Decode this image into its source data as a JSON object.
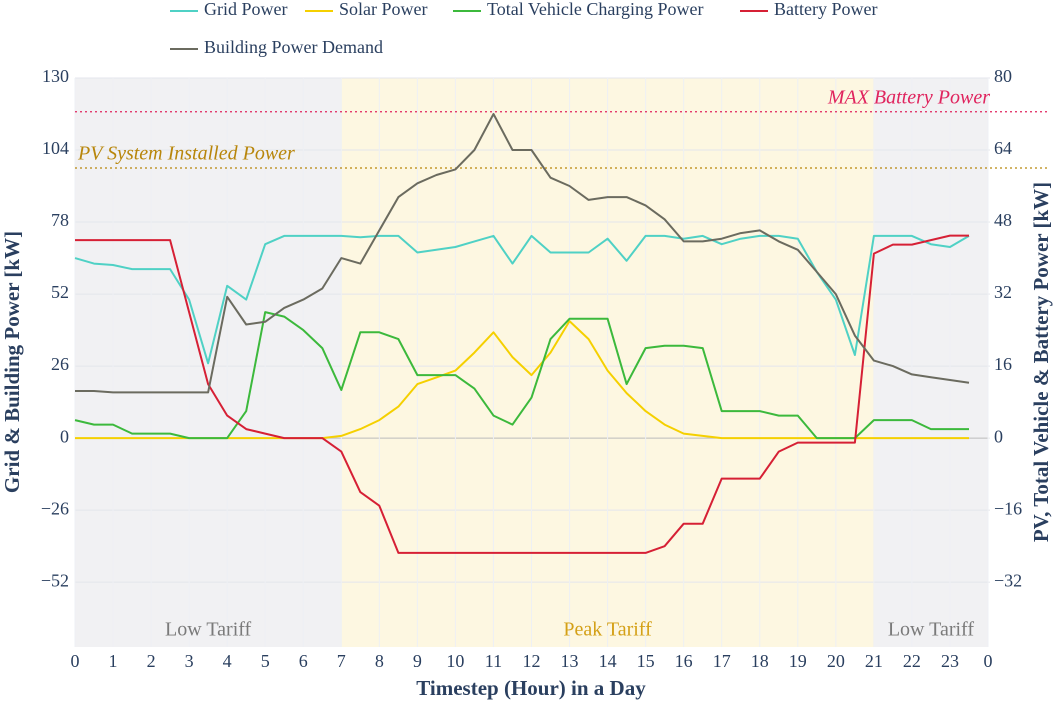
{
  "chart_data": {
    "type": "line",
    "xlabel": "Timestep (Hour) in a Day",
    "ylabel": "Grid & Building Power [kW]",
    "y2label": "PV, Total Vehicle & Battery Power [kW]",
    "xlim": [
      0,
      24
    ],
    "xticks": [
      0,
      1,
      2,
      3,
      4,
      5,
      6,
      7,
      8,
      9,
      10,
      11,
      12,
      13,
      14,
      15,
      16,
      17,
      18,
      19,
      20,
      21,
      22,
      23,
      {
        "value": 24,
        "label": "0"
      }
    ],
    "ylim": [
      -75.4,
      130
    ],
    "yticks": [
      130,
      104,
      78,
      52,
      26,
      0,
      {
        "value": -26,
        "label": "−26"
      },
      {
        "value": -52,
        "label": "−52"
      }
    ],
    "y2lim": [
      -46.4,
      80
    ],
    "y2ticks": [
      80,
      64,
      48,
      32,
      16,
      0,
      {
        "value": -16,
        "label": "−16"
      },
      {
        "value": -32,
        "label": "−32"
      }
    ],
    "grid": true,
    "x": [
      0,
      0.5,
      1,
      1.5,
      2,
      2.5,
      3,
      3.5,
      4,
      4.5,
      5,
      5.5,
      6,
      6.5,
      7,
      7.5,
      8,
      8.5,
      9,
      9.5,
      10,
      10.5,
      11,
      11.5,
      12,
      12.5,
      13,
      13.5,
      14,
      14.5,
      15,
      15.5,
      16,
      16.5,
      17,
      17.5,
      18,
      18.5,
      19,
      19.5,
      20,
      20.5,
      21,
      21.5,
      22,
      22.5,
      23,
      23.5
    ],
    "series": [
      {
        "name": "Grid Power",
        "color": "#4fd1c5",
        "axis": "y",
        "values": [
          65,
          63,
          62.5,
          61,
          61,
          61,
          50,
          27,
          55,
          50,
          70,
          73,
          73,
          73,
          73,
          72.5,
          73,
          73,
          67,
          68,
          69,
          71,
          73,
          63,
          73,
          67,
          67,
          67,
          72,
          64,
          73,
          73,
          72,
          73,
          70,
          72,
          73,
          73,
          72,
          60,
          50,
          30,
          73,
          73,
          73,
          70,
          69,
          73
        ]
      },
      {
        "name": "Solar Power",
        "color": "#f5d000",
        "axis": "y2",
        "values": [
          0,
          0,
          0,
          0,
          0,
          0,
          0,
          0,
          0,
          0,
          0,
          0,
          0,
          0,
          0.5,
          2,
          4,
          7,
          12,
          13.5,
          15,
          19,
          23.5,
          18,
          14,
          19,
          26,
          22,
          15,
          10,
          6,
          3,
          1,
          0.5,
          0,
          0,
          0,
          0,
          0,
          0,
          0,
          0,
          0,
          0,
          0,
          0,
          0,
          0
        ]
      },
      {
        "name": "Total Vehicle Charging Power",
        "color": "#3cb93c",
        "axis": "y2",
        "values": [
          4,
          3,
          3,
          1,
          1,
          1,
          0,
          0,
          0,
          6,
          28,
          27,
          24,
          20,
          10.7,
          23.5,
          23.5,
          22,
          14,
          14,
          14,
          11,
          5,
          3,
          9,
          22,
          26.5,
          26.5,
          26.5,
          12,
          20,
          20.5,
          20.5,
          20,
          6,
          6,
          6,
          5,
          5,
          0,
          0,
          0,
          4,
          4,
          4,
          2,
          2,
          2
        ]
      },
      {
        "name": "Battery Power",
        "color": "#d62035",
        "axis": "y2",
        "values": [
          44,
          44,
          44,
          44,
          44,
          44,
          28,
          12,
          5,
          2,
          1,
          0,
          0,
          0,
          -3,
          -12,
          -15,
          -25.5,
          -25.5,
          -25.5,
          -25.5,
          -25.5,
          -25.5,
          -25.5,
          -25.5,
          -25.5,
          -25.5,
          -25.5,
          -25.5,
          -25.5,
          -25.5,
          -24,
          -19,
          -19,
          -9,
          -9,
          -9,
          -3,
          -1,
          -1,
          -1,
          -1,
          41,
          43,
          43,
          44,
          45,
          45
        ]
      },
      {
        "name": "Building Power Demand",
        "color": "#6b6b5f",
        "axis": "y",
        "values": [
          17,
          17,
          16.5,
          16.5,
          16.5,
          16.5,
          16.5,
          16.5,
          51,
          41,
          42,
          47,
          50,
          54,
          65,
          63,
          75,
          87,
          92,
          95,
          97,
          104,
          117,
          104,
          104,
          94,
          91,
          86,
          87,
          87,
          84,
          79,
          71,
          71,
          72,
          74,
          75,
          71,
          68,
          60,
          52,
          37,
          28,
          26,
          23,
          22,
          21,
          20
        ]
      }
    ],
    "regions": [
      {
        "label": "Low Tariff",
        "start": 0,
        "end": 7,
        "color": "#f1f1f3",
        "text_color": "#7a7a7a"
      },
      {
        "label": "Peak Tariff",
        "start": 7,
        "end": 21,
        "color": "#fdf7e1",
        "text_color": "#d4a017"
      },
      {
        "label": "Low Tariff",
        "start": 21,
        "end": 24,
        "color": "#f1f1f3",
        "text_color": "#7a7a7a"
      }
    ],
    "hlines": [
      {
        "label": "MAX Battery Power",
        "value": 72.5,
        "axis": "y2",
        "color": "#e0245e",
        "align": "right"
      },
      {
        "label": "PV System Installed Power",
        "value": 60,
        "axis": "y2",
        "color": "#b8860b",
        "align": "left"
      }
    ]
  }
}
